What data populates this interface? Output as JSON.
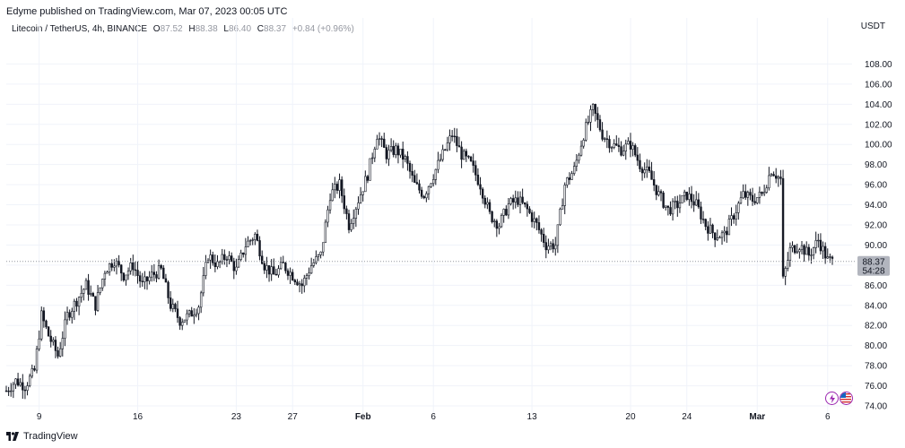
{
  "caption": "Edyme published on TradingView.com, Mar 07, 2023 00:05 UTC",
  "legend": {
    "symbol": "Litecoin / TetherUS, 4h, BINANCE",
    "open_label": "O",
    "open": "87.52",
    "high_label": "H",
    "high": "88.38",
    "low_label": "L",
    "low": "86.40",
    "close_label": "C",
    "close": "88.37",
    "change": "+0.84 (+0.96%)"
  },
  "currency": "USDT",
  "footer": {
    "brand": "TradingView"
  },
  "colors": {
    "candle": "#131722",
    "grid": "#f0f3fa",
    "price_tag_bg": "#b2b5be",
    "price_line": "#9598a1",
    "icon_accent": "#9c27b0"
  },
  "icons": [
    "tradingview-logo-icon",
    "flash-icon",
    "us-flag-icon"
  ],
  "chart_data": {
    "type": "candlestick",
    "interval": "4h",
    "y_axis": {
      "ticks": [
        "108.00",
        "106.00",
        "104.00",
        "102.00",
        "100.00",
        "98.00",
        "96.00",
        "94.00",
        "92.00",
        "90.00",
        "88.00",
        "86.00",
        "84.00",
        "82.00",
        "80.00",
        "78.00",
        "76.00",
        "74.00"
      ],
      "range": [
        73.2,
        110.8
      ]
    },
    "x_axis": {
      "ticks": [
        {
          "label": "9",
          "bold": false,
          "idx": 14
        },
        {
          "label": "16",
          "bold": false,
          "idx": 56
        },
        {
          "label": "23",
          "bold": false,
          "idx": 98
        },
        {
          "label": "27",
          "bold": false,
          "idx": 122
        },
        {
          "label": "Feb",
          "bold": true,
          "idx": 152
        },
        {
          "label": "6",
          "bold": false,
          "idx": 182
        },
        {
          "label": "13",
          "bold": false,
          "idx": 224
        },
        {
          "label": "20",
          "bold": false,
          "idx": 266
        },
        {
          "label": "24",
          "bold": false,
          "idx": 290
        },
        {
          "label": "Mar",
          "bold": true,
          "idx": 320
        },
        {
          "label": "6",
          "bold": false,
          "idx": 350
        }
      ]
    },
    "last_price": "88.37",
    "countdown": "54:28",
    "anchors": [
      [
        0,
        75.5
      ],
      [
        4,
        76.5
      ],
      [
        8,
        76
      ],
      [
        12,
        77.5
      ],
      [
        15,
        83
      ],
      [
        18,
        81
      ],
      [
        22,
        79
      ],
      [
        26,
        83
      ],
      [
        30,
        84.5
      ],
      [
        34,
        86
      ],
      [
        38,
        84
      ],
      [
        42,
        87.5
      ],
      [
        46,
        88.5
      ],
      [
        50,
        87
      ],
      [
        54,
        88
      ],
      [
        58,
        86
      ],
      [
        62,
        87
      ],
      [
        66,
        87.5
      ],
      [
        70,
        84
      ],
      [
        74,
        82.5
      ],
      [
        78,
        83
      ],
      [
        82,
        84
      ],
      [
        86,
        89
      ],
      [
        90,
        88
      ],
      [
        94,
        89
      ],
      [
        98,
        87.5
      ],
      [
        102,
        90
      ],
      [
        106,
        91
      ],
      [
        110,
        88
      ],
      [
        114,
        87
      ],
      [
        118,
        88
      ],
      [
        122,
        87
      ],
      [
        126,
        86
      ],
      [
        130,
        88
      ],
      [
        134,
        89
      ],
      [
        138,
        95
      ],
      [
        142,
        96
      ],
      [
        146,
        92
      ],
      [
        150,
        94.5
      ],
      [
        154,
        97
      ],
      [
        158,
        101
      ],
      [
        162,
        99
      ],
      [
        166,
        99.5
      ],
      [
        170,
        98.5
      ],
      [
        174,
        96
      ],
      [
        178,
        95
      ],
      [
        182,
        97
      ],
      [
        186,
        99
      ],
      [
        190,
        101
      ],
      [
        194,
        99
      ],
      [
        198,
        98
      ],
      [
        202,
        96
      ],
      [
        206,
        93
      ],
      [
        210,
        92
      ],
      [
        214,
        94
      ],
      [
        218,
        94.5
      ],
      [
        222,
        93.5
      ],
      [
        226,
        92
      ],
      [
        230,
        90
      ],
      [
        234,
        90
      ],
      [
        238,
        96
      ],
      [
        242,
        97.5
      ],
      [
        246,
        101
      ],
      [
        250,
        103.5
      ],
      [
        254,
        101
      ],
      [
        258,
        100
      ],
      [
        262,
        99.5
      ],
      [
        266,
        100
      ],
      [
        270,
        98
      ],
      [
        274,
        97
      ],
      [
        278,
        95
      ],
      [
        282,
        93.5
      ],
      [
        286,
        94
      ],
      [
        290,
        95
      ],
      [
        294,
        94
      ],
      [
        298,
        92
      ],
      [
        302,
        91
      ],
      [
        306,
        91
      ],
      [
        310,
        93
      ],
      [
        314,
        95
      ],
      [
        318,
        94.5
      ],
      [
        322,
        95
      ],
      [
        326,
        97.5
      ],
      [
        330,
        96.5
      ],
      [
        331,
        86.5
      ],
      [
        334,
        89.5
      ],
      [
        338,
        90
      ],
      [
        342,
        89
      ],
      [
        346,
        90.5
      ],
      [
        350,
        88.5
      ],
      [
        352,
        88.37
      ]
    ]
  }
}
